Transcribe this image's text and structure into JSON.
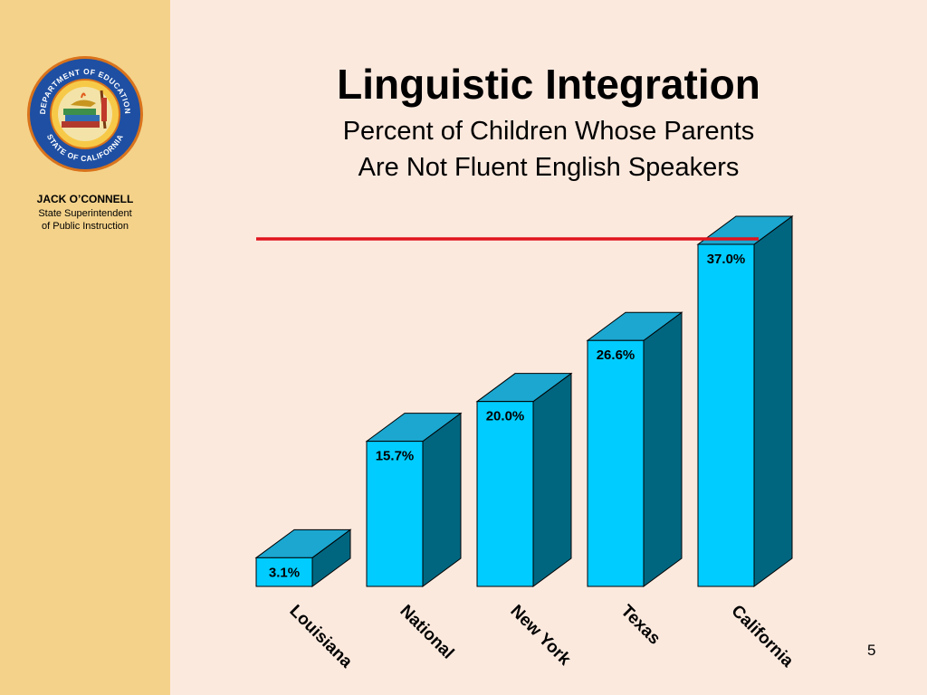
{
  "sidebar": {
    "seal_text_top": "DEPARTMENT OF EDUCATION",
    "seal_text_bottom": "STATE OF CALIFORNIA",
    "name": "JACK O’CONNELL",
    "role_line1": "State Superintendent",
    "role_line2": "of Public Instruction"
  },
  "slide": {
    "title": "Linguistic Integration",
    "subtitle_line1": "Percent of Children Whose Parents",
    "subtitle_line2": "Are Not Fluent English Speakers",
    "page_number": "5"
  },
  "colors": {
    "sidebar": "#f4d28a",
    "background": "#fce9de",
    "bar_front": "#00ccff",
    "bar_side": "#006680",
    "bar_top": "#1ba7d0",
    "reference_line": "#e0141e"
  },
  "chart_data": {
    "type": "bar",
    "style": "3d",
    "categories": [
      "Louisiana",
      "National",
      "New York",
      "Texas",
      "California"
    ],
    "values": [
      3.1,
      15.7,
      20.0,
      26.6,
      37.0
    ],
    "data_labels": [
      "3.1%",
      "15.7%",
      "20.0%",
      "26.6%",
      "37.0%"
    ],
    "reference_line_value": 37.0,
    "ylim": [
      0,
      37.0
    ],
    "grid": false,
    "legend": "none"
  }
}
